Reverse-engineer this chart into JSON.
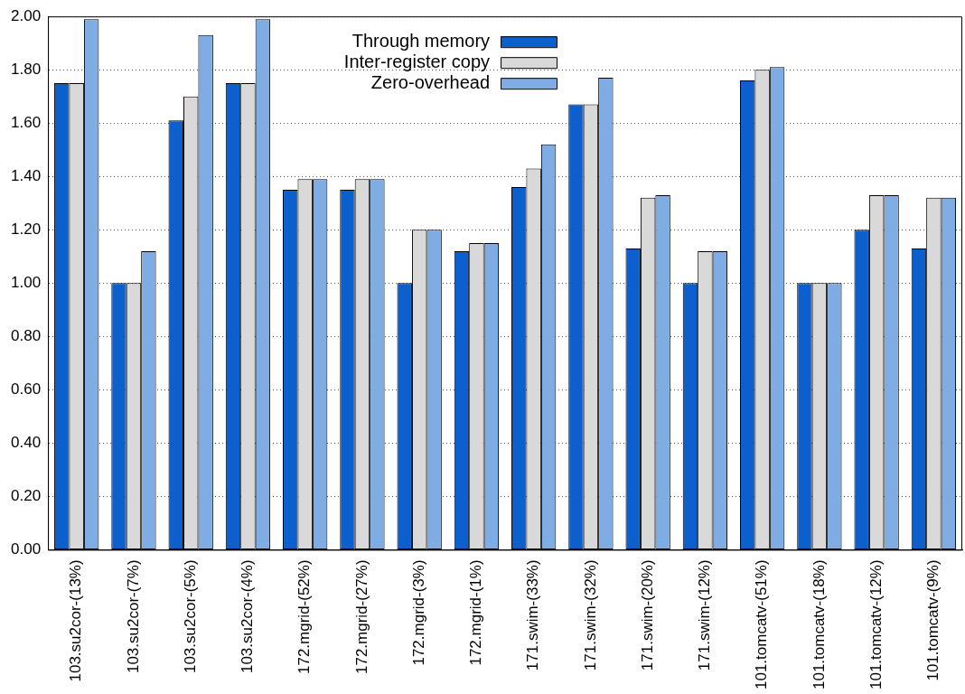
{
  "chart_data": {
    "type": "bar",
    "categories": [
      "103.su2cor-(13%)",
      "103.su2cor-(7%)",
      "103.su2cor-(5%)",
      "103.su2cor-(4%)",
      "172.mgrid-(52%)",
      "172.mgrid-(27%)",
      "172.mgrid-(3%)",
      "172.mgrid-(1%)",
      "171.swim-(33%)",
      "171.swim-(32%)",
      "171.swim-(20%)",
      "171.swim-(12%)",
      "101.tomcatv-(51%)",
      "101.tomcatv-(18%)",
      "101.tomcatv-(12%)",
      "101.tomcatv-(9%)"
    ],
    "series": [
      {
        "name": "Through memory",
        "color": "#0c5fcc",
        "values": [
          1.75,
          1.0,
          1.61,
          1.75,
          1.35,
          1.35,
          1.0,
          1.12,
          1.36,
          1.67,
          1.13,
          1.0,
          1.76,
          1.0,
          1.2,
          1.13
        ]
      },
      {
        "name": "Inter-register copy",
        "color": "#d9d9d9",
        "values": [
          1.75,
          1.0,
          1.7,
          1.75,
          1.39,
          1.39,
          1.2,
          1.15,
          1.43,
          1.67,
          1.32,
          1.12,
          1.8,
          1.0,
          1.33,
          1.32
        ]
      },
      {
        "name": "Zero-overhead",
        "color": "#7fade3",
        "values": [
          1.99,
          1.12,
          1.93,
          1.99,
          1.39,
          1.39,
          1.2,
          1.15,
          1.52,
          1.77,
          1.33,
          1.12,
          1.81,
          1.0,
          1.33,
          1.32
        ]
      }
    ],
    "ylim": [
      0,
      2
    ],
    "yticks": [
      {
        "value": 0,
        "label": "0.00"
      },
      {
        "value": 0.2,
        "label": "0.20"
      },
      {
        "value": 0.4,
        "label": "0.40"
      },
      {
        "value": 0.6,
        "label": "0.60"
      },
      {
        "value": 0.8,
        "label": "0.80"
      },
      {
        "value": 1,
        "label": "1.00"
      },
      {
        "value": 1.2,
        "label": "1.20"
      },
      {
        "value": 1.4,
        "label": "1.40"
      },
      {
        "value": 1.6,
        "label": "1.60"
      },
      {
        "value": 1.8,
        "label": "1.80"
      },
      {
        "value": 2,
        "label": "2.00"
      }
    ],
    "grid": "y",
    "legend": "top"
  }
}
